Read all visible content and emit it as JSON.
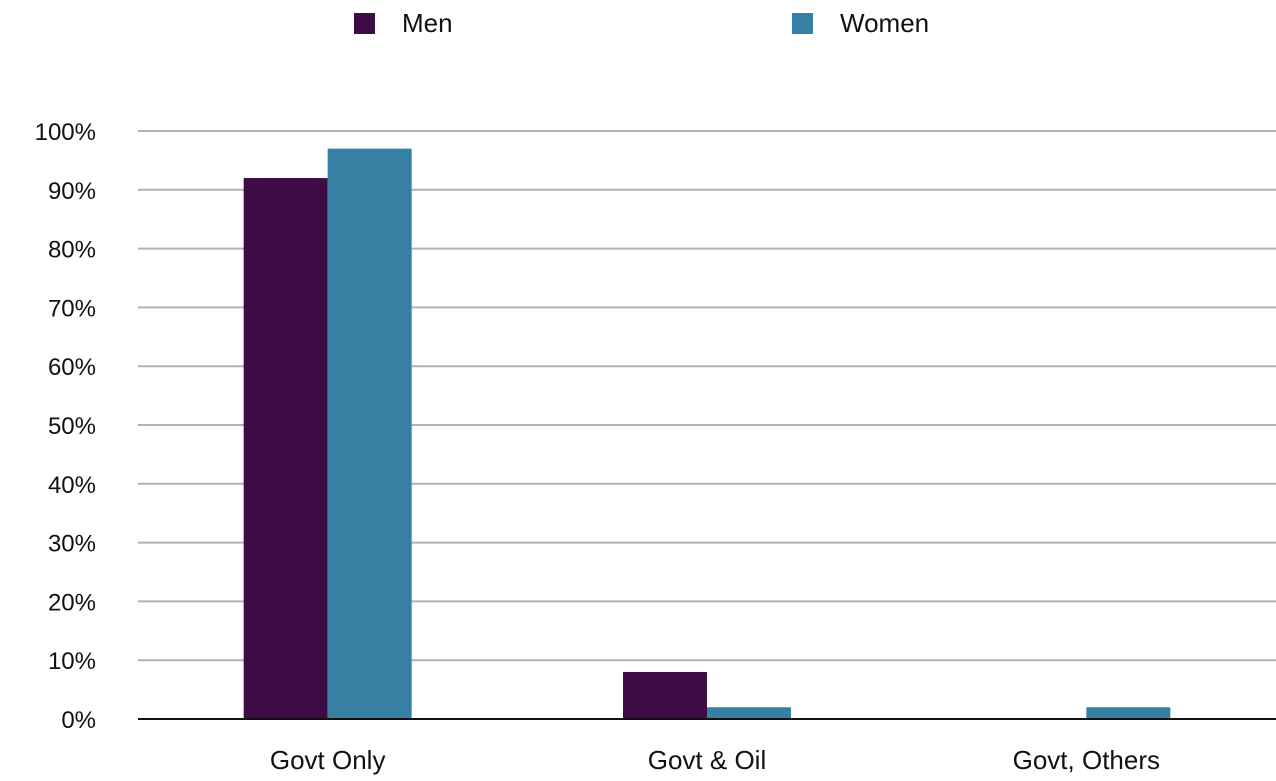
{
  "chart_data": {
    "type": "bar",
    "categories": [
      "Govt Only",
      "Govt & Oil",
      "Govt, Others"
    ],
    "series": [
      {
        "name": "Men",
        "values": [
          92,
          8,
          0
        ],
        "color": "#3d0c45"
      },
      {
        "name": "Women",
        "values": [
          97,
          2,
          2
        ],
        "color": "#3680a3"
      }
    ],
    "ylim": [
      0,
      100
    ],
    "yticks": [
      "0%",
      "10%",
      "20%",
      "30%",
      "40%",
      "50%",
      "60%",
      "70%",
      "80%",
      "90%",
      "100%"
    ],
    "grid": true,
    "legend_position": "top",
    "title": "",
    "xlabel": "",
    "ylabel": ""
  }
}
